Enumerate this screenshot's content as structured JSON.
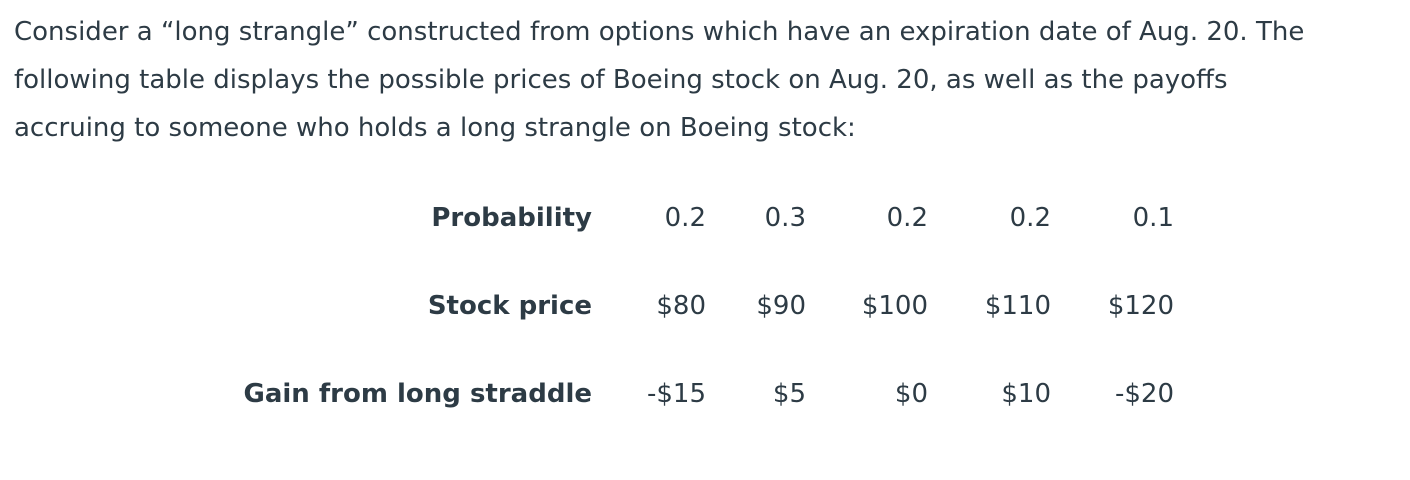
{
  "intro": {
    "lines": [
      "Consider a “long strangle” constructed from options which have an expiration date of Aug. 20. The",
      "following table displays the possible prices of Boeing stock on Aug. 20, as well as the payoffs",
      "accruing to someone who holds a long strangle on Boeing stock:"
    ]
  },
  "table": {
    "rows": [
      {
        "label": "Probability",
        "cells": [
          "0.2",
          "0.3",
          "0.2",
          "0.2",
          "0.1"
        ]
      },
      {
        "label": "Stock price",
        "cells": [
          "$80",
          "$90",
          "$100",
          "$110",
          "$120"
        ]
      },
      {
        "label": "Gain from long straddle",
        "cells": [
          "-$15",
          "$5",
          "$0",
          "$10",
          "-$20"
        ]
      }
    ]
  }
}
